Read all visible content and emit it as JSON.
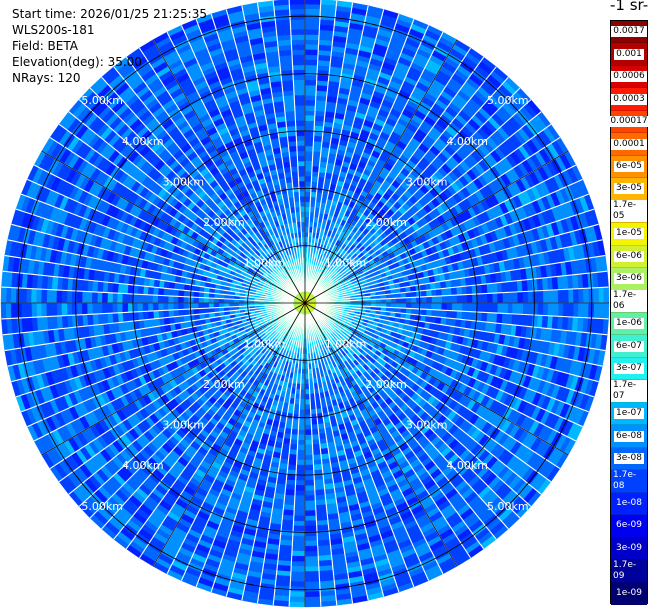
{
  "header": {
    "start_time": "Start time: 2026/01/25 21:25:35",
    "instrument": "WLS200s-181",
    "field": "Field: BETA",
    "elevation": "Elevation(deg): 35.00",
    "nrays": "NRays: 120"
  },
  "colorbar": {
    "unit_label": "-1 sr-",
    "ticks": [
      "0.0017",
      "0.001",
      "0.0006",
      "0.0003",
      "0.00017",
      "0.0001",
      "6e-05",
      "3e-05",
      "1.7e-05",
      "1e-05",
      "6e-06",
      "3e-06",
      "1.7e-06",
      "1e-06",
      "6e-07",
      "3e-07",
      "1.7e-07",
      "1e-07",
      "6e-08",
      "3e-08",
      "1.7e-08",
      "1e-08",
      "6e-09",
      "3e-09",
      "1.7e-09",
      "1e-09"
    ],
    "colors": [
      "#8b0000",
      "#b00000",
      "#d80000",
      "#ff1a00",
      "#ff4400",
      "#ff6a00",
      "#ff9000",
      "#ffb400",
      "#ffd800",
      "#f4f400",
      "#d0f030",
      "#aaf060",
      "#80f080",
      "#60f0a8",
      "#40f0d0",
      "#20f0f0",
      "#00d8ff",
      "#00b8ff",
      "#0090ff",
      "#0068ff",
      "#0040ff",
      "#0020ff",
      "#0000f0",
      "#0000c8",
      "#00009a",
      "#000070"
    ],
    "white_ticks": [
      "1.7e-08",
      "1e-08",
      "6e-09",
      "3e-09",
      "1.7e-09",
      "1e-09"
    ]
  },
  "chart_data": {
    "type": "heatmap",
    "projection": "polar PPI scan",
    "nrays": 120,
    "range_rings_km": [
      1,
      2,
      3,
      4,
      5
    ],
    "ring_labels": [
      "1.00km",
      "2.00km",
      "3.00km",
      "4.00km",
      "5.00km"
    ],
    "max_range_km": 5.3,
    "azimuth_lines_deg": [
      0,
      30,
      60,
      90,
      120,
      150,
      180,
      210,
      240,
      270,
      300,
      330
    ],
    "colorscale": "log",
    "value_range": [
      1e-09,
      0.0017
    ],
    "radial_profile": [
      {
        "range_km": 0.0,
        "beta": 1e-05
      },
      {
        "range_km": 0.3,
        "beta": 3e-06
      },
      {
        "range_km": 0.6,
        "beta": 3e-07
      },
      {
        "range_km": 1.0,
        "beta": 6e-08
      },
      {
        "range_km": 2.0,
        "beta": 3e-08
      },
      {
        "range_km": 3.0,
        "beta": 3e-08
      },
      {
        "range_km": 4.0,
        "beta": 3e-08
      },
      {
        "range_km": 5.0,
        "beta": 3e-08
      }
    ],
    "colors": {
      "ring_line": "#000000",
      "gap_line": "#ffffff"
    }
  }
}
